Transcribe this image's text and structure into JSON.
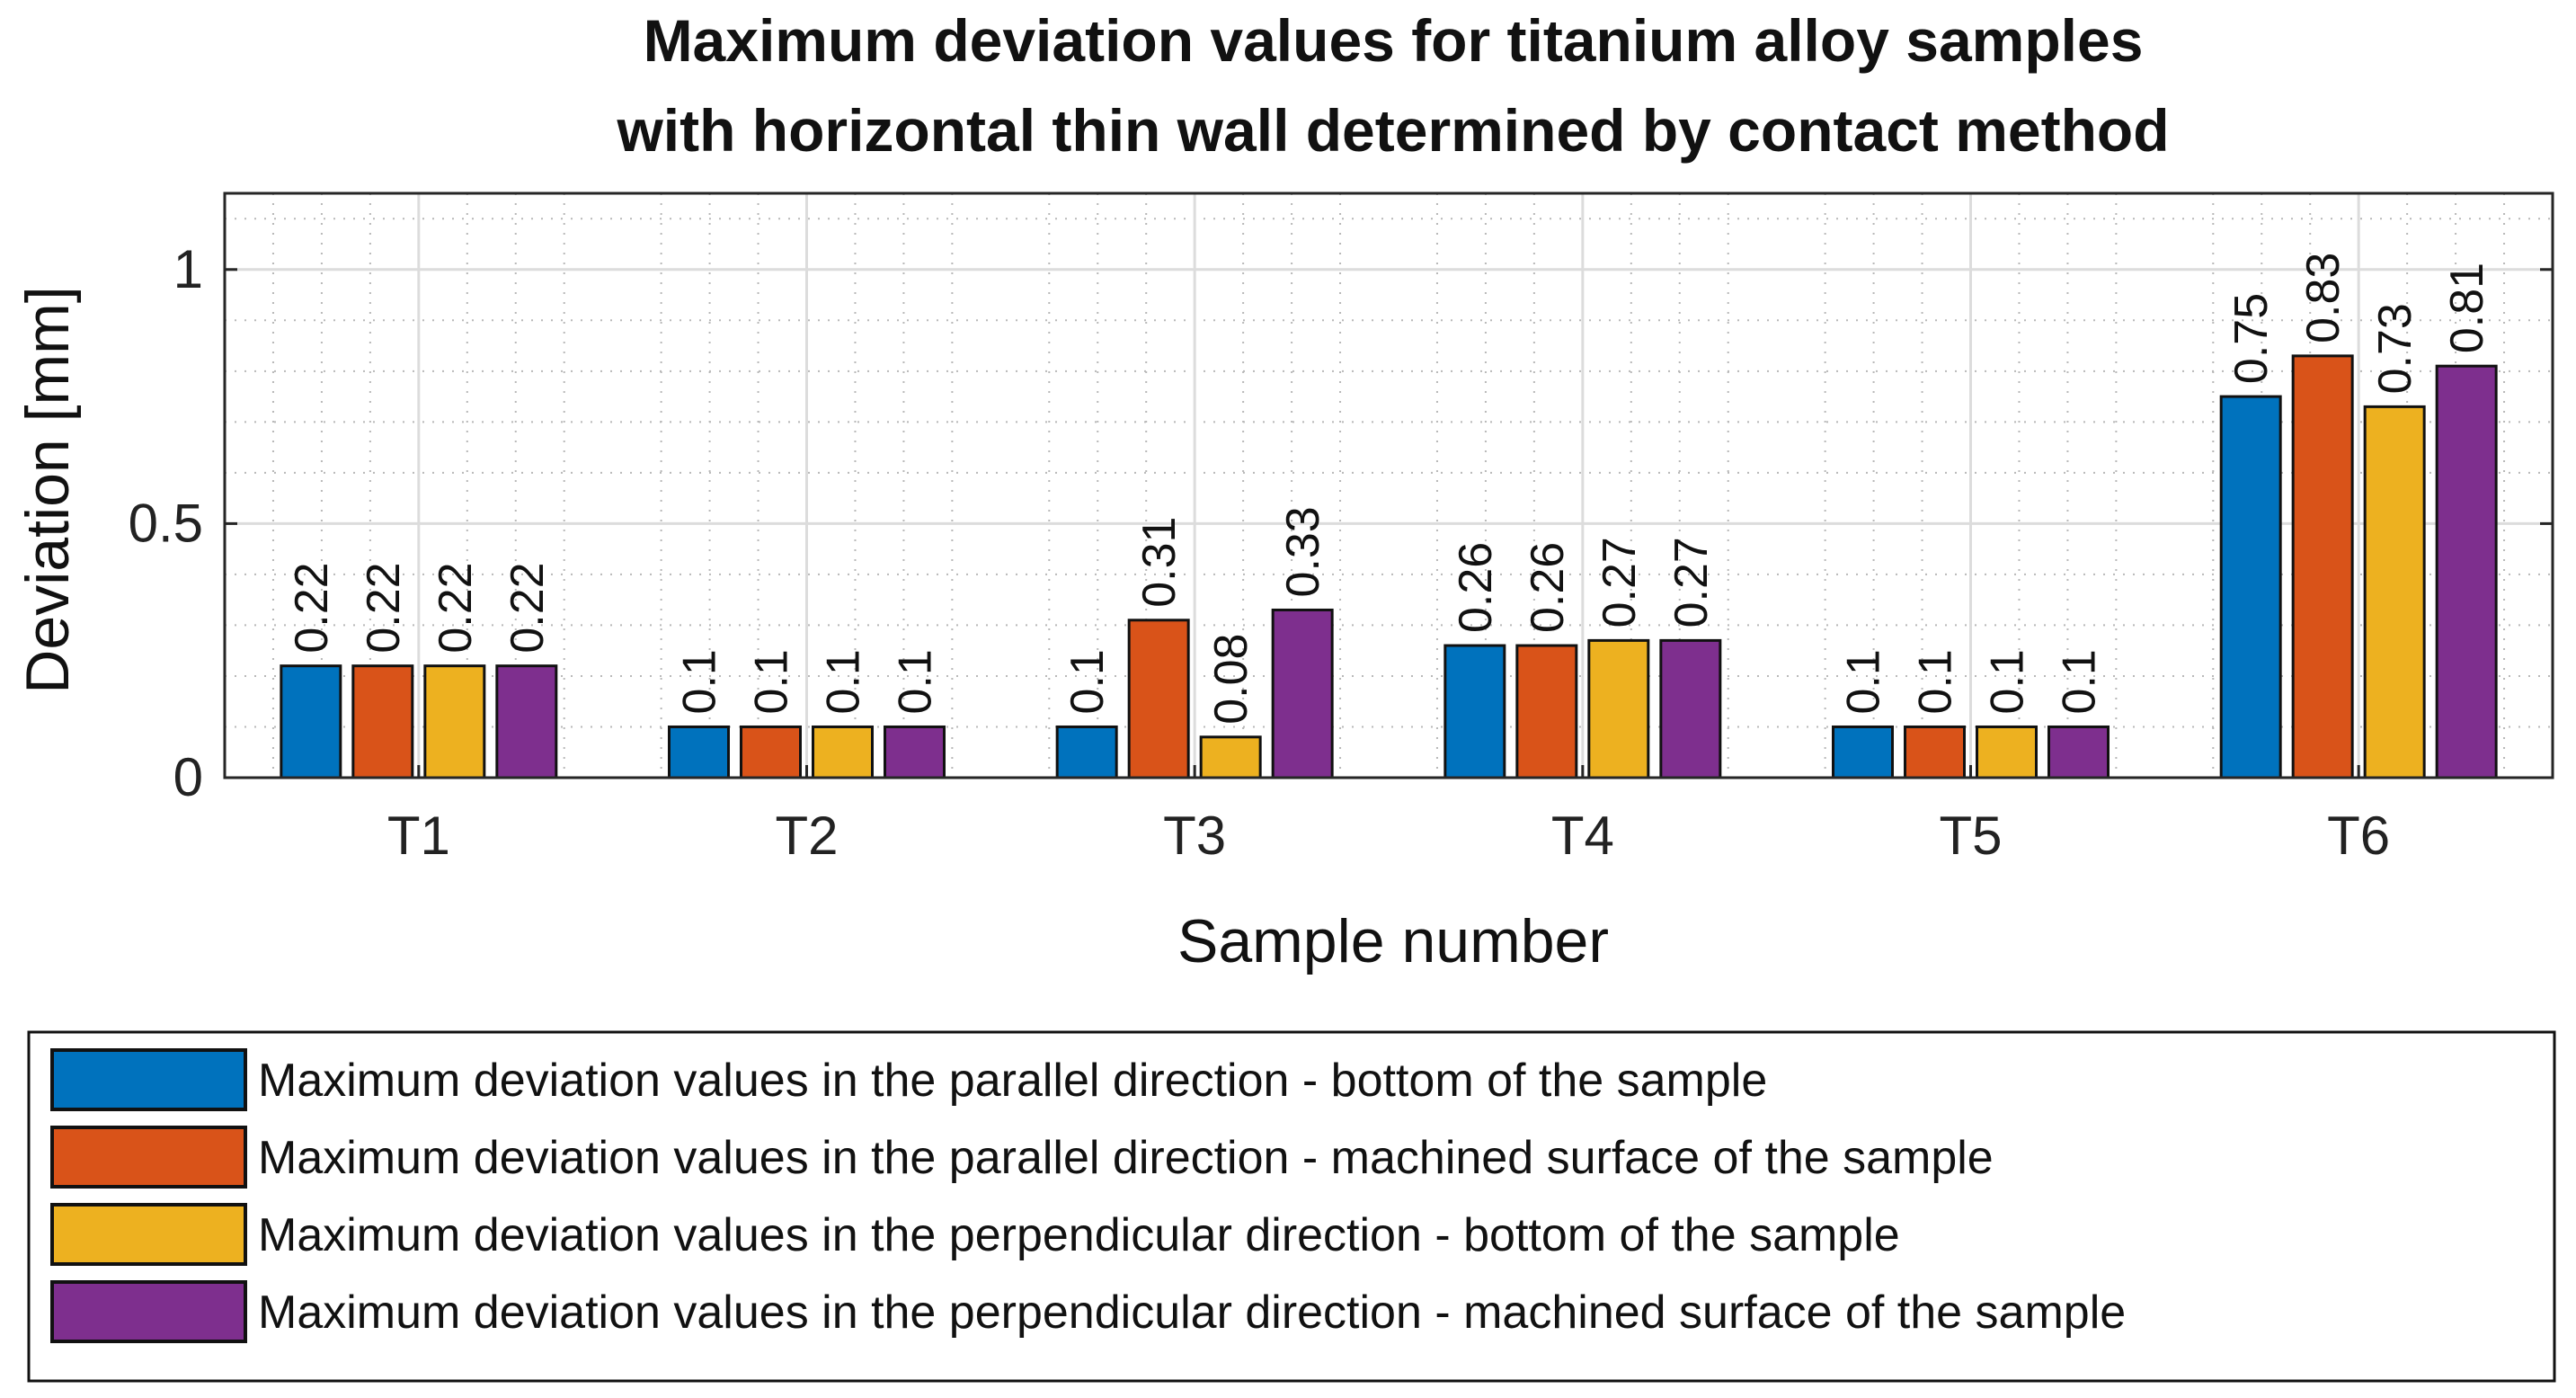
{
  "chart_data": {
    "type": "bar",
    "title": [
      "Maximum deviation values for titanium alloy samples",
      "with horizontal thin wall determined by contact method"
    ],
    "xlabel": "Sample number",
    "ylabel": "Deviation [mm]",
    "categories": [
      "T1",
      "T2",
      "T3",
      "T4",
      "T5",
      "T6"
    ],
    "ylim": [
      0,
      1.15
    ],
    "yticks": [
      0,
      0.5,
      1
    ],
    "ytick_labels": [
      "0",
      "0.5",
      "1"
    ],
    "grid": true,
    "minor_grid": true,
    "legend_position": "bottom",
    "series": [
      {
        "name": "Maximum deviation values in the parallel direction - bottom of the sample",
        "color": "#0072BD",
        "values": [
          0.22,
          0.1,
          0.1,
          0.26,
          0.1,
          0.75
        ],
        "labels": [
          "0.22",
          "0.1",
          "0.1",
          "0.26",
          "0.1",
          "0.75"
        ]
      },
      {
        "name": "Maximum deviation values in the parallel direction - machined surface of the sample",
        "color": "#D95319",
        "values": [
          0.22,
          0.1,
          0.31,
          0.26,
          0.1,
          0.83
        ],
        "labels": [
          "0.22",
          "0.1",
          "0.31",
          "0.26",
          "0.1",
          "0.83"
        ]
      },
      {
        "name": "Maximum deviation values in the perpendicular direction - bottom of the sample",
        "color": "#EDB120",
        "values": [
          0.22,
          0.1,
          0.08,
          0.27,
          0.1,
          0.73
        ],
        "labels": [
          "0.22",
          "0.1",
          "0.08",
          "0.27",
          "0.1",
          "0.73"
        ]
      },
      {
        "name": "Maximum deviation values in the perpendicular direction - machined surface of the sample",
        "color": "#7E2F8E",
        "values": [
          0.22,
          0.1,
          0.33,
          0.27,
          0.1,
          0.81
        ],
        "labels": [
          "0.22",
          "0.1",
          "0.33",
          "0.27",
          "0.1",
          "0.81"
        ]
      }
    ]
  }
}
